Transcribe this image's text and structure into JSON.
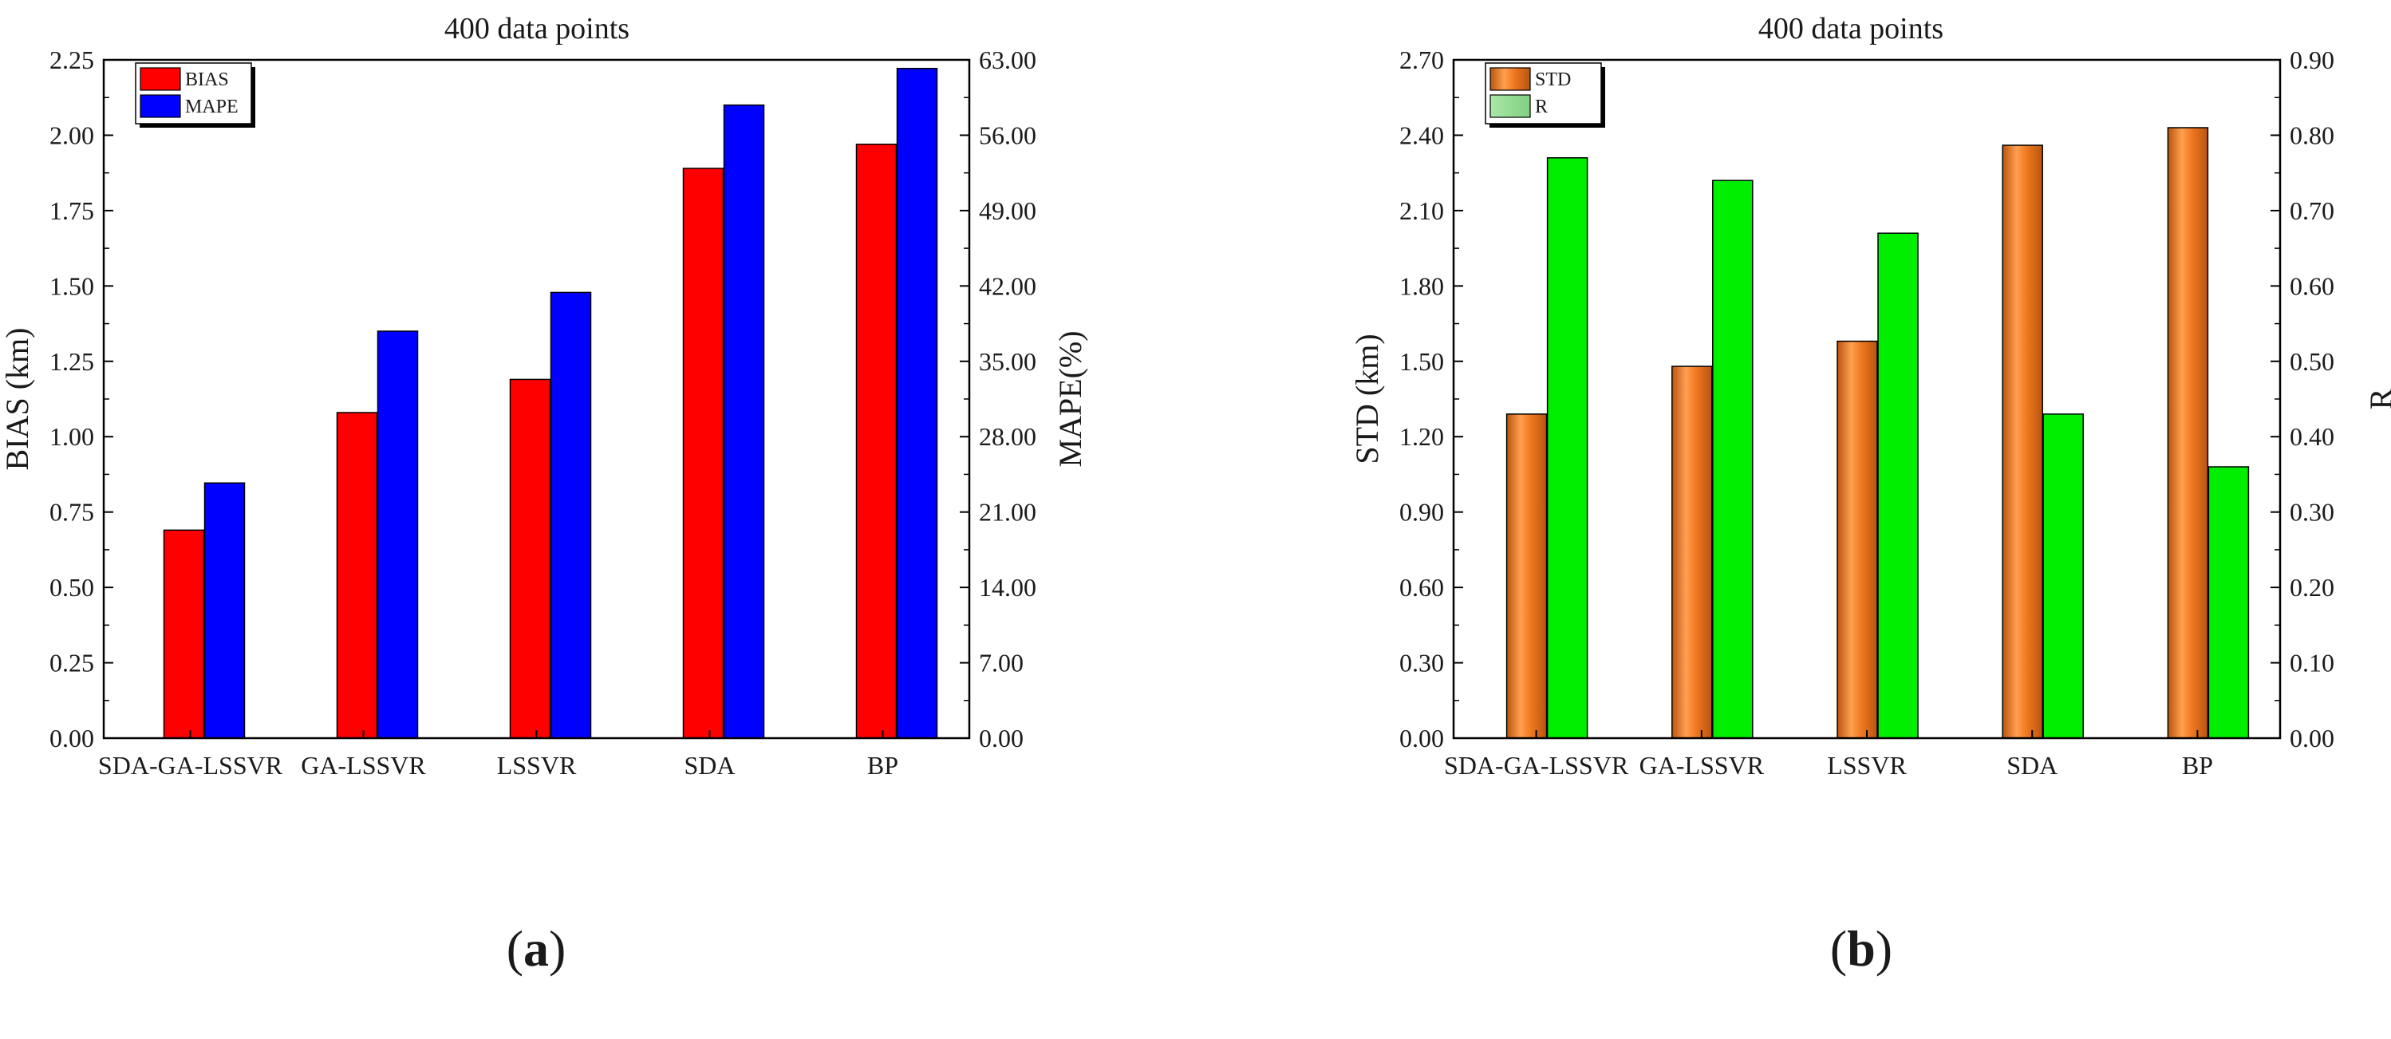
{
  "chart_data": [
    {
      "panel_label": "a",
      "type": "bar",
      "title": "400 data points",
      "categories": [
        "SDA-GA-LSSVR",
        "GA-LSSVR",
        "LSSVR",
        "SDA",
        "BP"
      ],
      "ylabel": "BIAS (km)",
      "y2label": "MAPE(%)",
      "ylim": [
        0,
        2.25
      ],
      "y2lim": [
        0,
        63
      ],
      "yticks": [
        "0.00",
        "0.25",
        "0.50",
        "0.75",
        "1.00",
        "1.25",
        "1.50",
        "1.75",
        "2.00",
        "2.25"
      ],
      "y2ticks": [
        "0.00",
        "7.00",
        "14.00",
        "21.00",
        "28.00",
        "35.00",
        "42.00",
        "49.00",
        "56.00",
        "63.00"
      ],
      "legend_position": "top-left",
      "series": [
        {
          "name": "BIAS",
          "axis": "left",
          "color": "#ff0000",
          "values": [
            0.69,
            1.08,
            1.19,
            1.89,
            1.97
          ]
        },
        {
          "name": "MAPE",
          "axis": "right",
          "color": "#0000ff",
          "values": [
            23.7,
            37.8,
            41.4,
            58.8,
            62.2
          ]
        }
      ]
    },
    {
      "panel_label": "b",
      "type": "bar",
      "title": "400 data points",
      "categories": [
        "SDA-GA-LSSVR",
        "GA-LSSVR",
        "LSSVR",
        "SDA",
        "BP"
      ],
      "ylabel": "STD (km)",
      "y2label": "R",
      "ylim": [
        0,
        2.7
      ],
      "y2lim": [
        0,
        0.9
      ],
      "yticks": [
        "0.00",
        "0.30",
        "0.60",
        "0.90",
        "1.20",
        "1.50",
        "1.80",
        "2.10",
        "2.40",
        "2.70"
      ],
      "y2ticks": [
        "0.00",
        "0.10",
        "0.20",
        "0.30",
        "0.40",
        "0.50",
        "0.60",
        "0.70",
        "0.80",
        "0.90"
      ],
      "legend_position": "top-left",
      "series": [
        {
          "name": "STD",
          "axis": "left",
          "color": "#f07820",
          "values": [
            1.29,
            1.48,
            1.58,
            2.36,
            2.43
          ]
        },
        {
          "name": "R",
          "axis": "right",
          "color": "#00ee00",
          "values": [
            0.77,
            0.74,
            0.67,
            0.43,
            0.36
          ]
        }
      ]
    }
  ]
}
